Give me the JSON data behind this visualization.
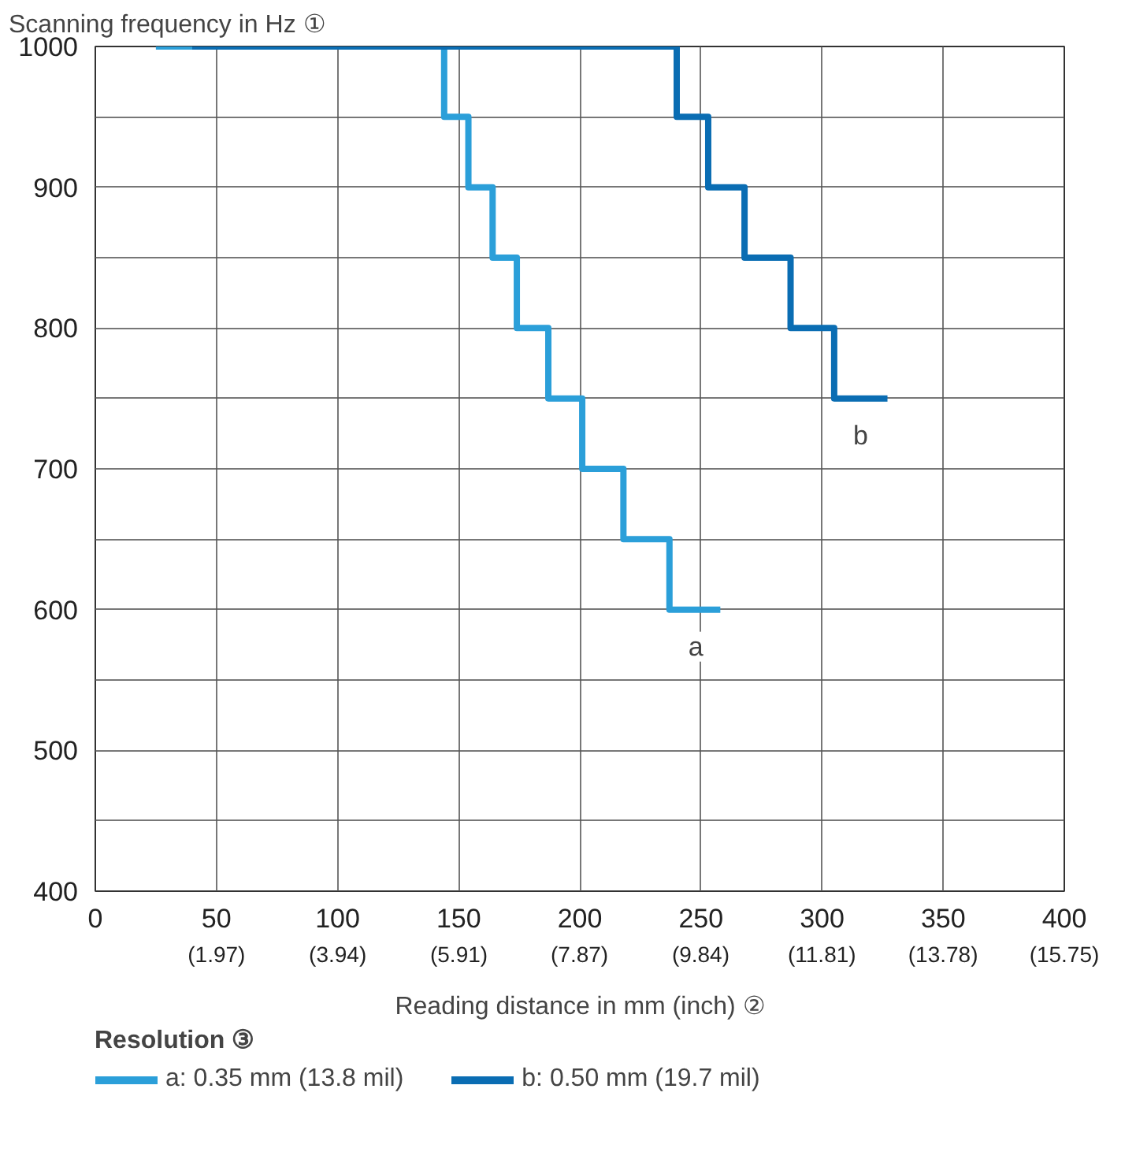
{
  "chart_data": {
    "type": "step",
    "ylabel": "Scanning frequency in Hz ①",
    "xlabel": "Reading distance in mm (inch) ②",
    "legend_title": "Resolution ③",
    "legend": "bottom left",
    "grid": true,
    "xlim": [
      0,
      400
    ],
    "ylim": [
      400,
      1000
    ],
    "xticks": [
      0,
      50,
      100,
      150,
      200,
      250,
      300,
      350,
      400
    ],
    "x2lim": [
      0,
      15.75
    ],
    "x2ticks": [
      {
        "value": 1.97,
        "label": "(1.97)"
      },
      {
        "value": 3.94,
        "label": "(3.94)"
      },
      {
        "value": 5.91,
        "label": "(5.91)"
      },
      {
        "value": 7.87,
        "label": "(7.87)"
      },
      {
        "value": 9.84,
        "label": "(9.84)"
      },
      {
        "value": 11.81,
        "label": "(11.81)"
      },
      {
        "value": 13.78,
        "label": "(13.78)"
      },
      {
        "value": 15.75,
        "label": "(15.75)"
      }
    ],
    "yticks": [
      400,
      {
        "value": 450,
        "label": null
      },
      500,
      {
        "value": 550,
        "label": null
      },
      600,
      {
        "value": 650,
        "label": null
      },
      700,
      {
        "value": 750,
        "label": null
      },
      800,
      {
        "value": 850,
        "label": null
      },
      900,
      {
        "value": 950,
        "label": null
      },
      1000
    ],
    "series": [
      {
        "name": "a: 0.35 mm (13.8 mil)",
        "color": "#2b9fd9",
        "x": [
          25,
          144,
          154,
          164,
          174,
          187,
          201,
          218,
          237,
          258
        ],
        "values": [
          1000,
          950,
          900,
          850,
          800,
          750,
          700,
          650,
          600,
          600
        ]
      },
      {
        "name": "b: 0.50 mm (19.7 mil)",
        "color": "#0a6db3",
        "x": [
          40,
          240,
          253,
          268,
          287,
          305,
          327
        ],
        "values": [
          1000,
          950,
          900,
          850,
          800,
          750,
          750
        ]
      }
    ],
    "annotations": [
      "a",
      "b"
    ]
  }
}
